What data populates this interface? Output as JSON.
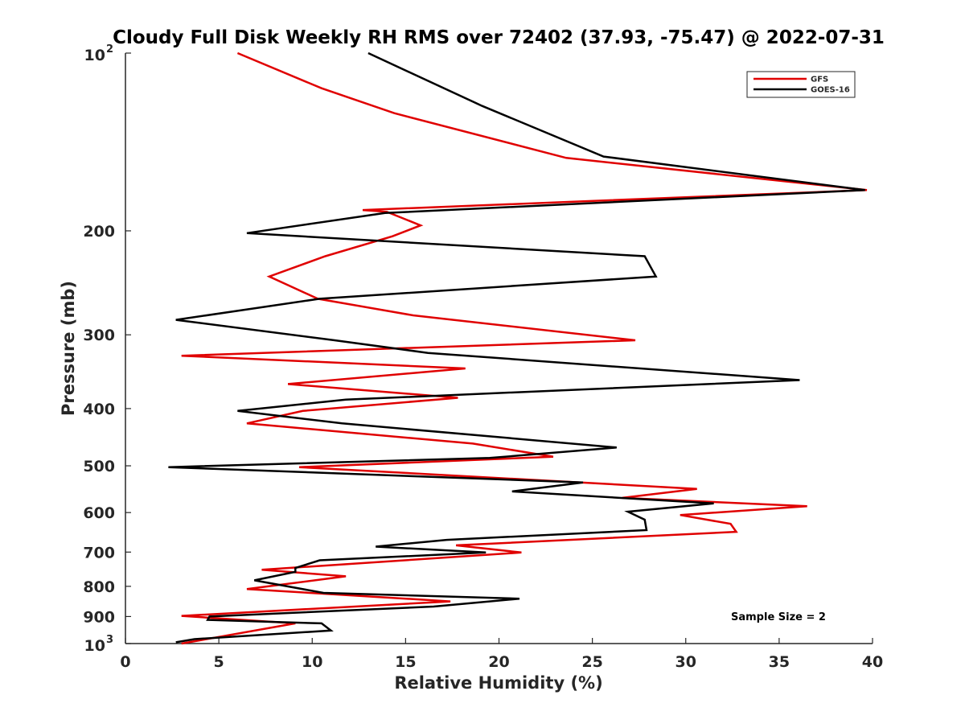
{
  "chart_data": {
    "type": "line",
    "title": "Cloudy Full Disk Weekly RH RMS over 72402 (37.93, -75.47) @ 2022-07-31",
    "xlabel": "Relative Humidity (%)",
    "ylabel": "Pressure (mb)",
    "xlim": [
      0,
      40
    ],
    "ylim": [
      100,
      1000
    ],
    "y_scale": "log",
    "y_reversed": true,
    "x_ticks": [
      "0",
      "5",
      "10",
      "15",
      "20",
      "25",
      "30",
      "35",
      "40"
    ],
    "y_ticks": [
      {
        "p": 100,
        "base": "10",
        "exp": "2"
      },
      {
        "p": 200,
        "label": "200"
      },
      {
        "p": 300,
        "label": "300"
      },
      {
        "p": 400,
        "label": "400"
      },
      {
        "p": 500,
        "label": "500"
      },
      {
        "p": 600,
        "label": "600"
      },
      {
        "p": 700,
        "label": "700"
      },
      {
        "p": 800,
        "label": "800"
      },
      {
        "p": 900,
        "label": "900"
      },
      {
        "p": 1000,
        "base": "10",
        "exp": "3"
      }
    ],
    "legend_position": "top-right",
    "annotation": "Sample Size = 2",
    "grid": false,
    "series": [
      {
        "name": "GFS",
        "color": "#e00000",
        "points": [
          [
            6.0,
            100
          ],
          [
            10.5,
            114.7
          ],
          [
            14.4,
            126.4
          ],
          [
            23.6,
            150.5
          ],
          [
            39.7,
            170.6
          ],
          [
            12.7,
            184.4
          ],
          [
            14.0,
            185.7
          ],
          [
            15.8,
            195.8
          ],
          [
            14.3,
            204.3
          ],
          [
            10.7,
            220.8
          ],
          [
            7.7,
            239.0
          ],
          [
            10.3,
            260.7
          ],
          [
            15.4,
            278.1
          ],
          [
            27.3,
            306.5
          ],
          [
            3.0,
            325.5
          ],
          [
            18.2,
            342.0
          ],
          [
            8.7,
            363.5
          ],
          [
            17.8,
            383.5
          ],
          [
            9.5,
            403.6
          ],
          [
            6.5,
            423.7
          ],
          [
            18.6,
            458.5
          ],
          [
            22.9,
            482.5
          ],
          [
            9.3,
            502.6
          ],
          [
            30.6,
            547.1
          ],
          [
            26.6,
            566.6
          ],
          [
            36.5,
            585.4
          ],
          [
            29.7,
            605.8
          ],
          [
            32.4,
            627.0
          ],
          [
            32.7,
            646.7
          ],
          [
            17.7,
            681.7
          ],
          [
            21.2,
            701.0
          ],
          [
            7.3,
            750.0
          ],
          [
            11.8,
            769.3
          ],
          [
            6.5,
            808.5
          ],
          [
            17.4,
            848.5
          ],
          [
            3.0,
            897.8
          ],
          [
            9.1,
            924.3
          ],
          [
            3.0,
            1000.0
          ]
        ]
      },
      {
        "name": "GOES-16",
        "color": "#000000",
        "points": [
          [
            13.0,
            100
          ],
          [
            19.1,
            122.9
          ],
          [
            25.6,
            149.7
          ],
          [
            39.6,
            170.6
          ],
          [
            13.9,
            186.6
          ],
          [
            6.5,
            201.8
          ],
          [
            27.8,
            220.8
          ],
          [
            28.4,
            239.0
          ],
          [
            10.4,
            260.7
          ],
          [
            2.7,
            283.0
          ],
          [
            11.2,
            306.5
          ],
          [
            16.2,
            321.9
          ],
          [
            36.1,
            357.9
          ],
          [
            11.8,
            386.3
          ],
          [
            6.0,
            403.6
          ],
          [
            11.6,
            423.7
          ],
          [
            26.3,
            465.6
          ],
          [
            19.5,
            484.9
          ],
          [
            2.3,
            502.6
          ],
          [
            24.5,
            533.4
          ],
          [
            20.7,
            552.6
          ],
          [
            31.5,
            578.9
          ],
          [
            26.9,
            598.0
          ],
          [
            27.8,
            616.8
          ],
          [
            27.9,
            642.6
          ],
          [
            17.2,
            667.4
          ],
          [
            13.4,
            685.3
          ],
          [
            19.3,
            701.0
          ],
          [
            10.4,
            722.7
          ],
          [
            9.1,
            744.9
          ],
          [
            9.1,
            756.0
          ],
          [
            6.9,
            781.4
          ],
          [
            10.6,
            820.7
          ],
          [
            21.1,
            839.4
          ],
          [
            16.5,
            865.6
          ],
          [
            4.5,
            900.0
          ],
          [
            4.4,
            912.0
          ],
          [
            10.5,
            924.3
          ],
          [
            11.0,
            950.4
          ],
          [
            3.7,
            982.8
          ],
          [
            2.7,
            995.1
          ]
        ]
      }
    ]
  }
}
